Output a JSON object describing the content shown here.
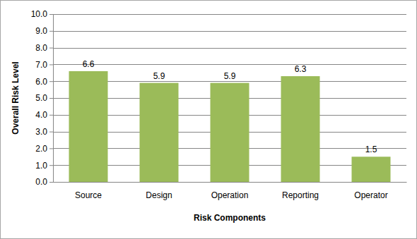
{
  "chart_data": {
    "type": "bar",
    "x_label": "Risk Components",
    "y_label": "Overall Risk Level",
    "categories": [
      "Source",
      "Design",
      "Operation",
      "Reporting",
      "Operator"
    ],
    "values": [
      6.6,
      5.9,
      5.9,
      6.3,
      1.5
    ],
    "color": "#9bbb59",
    "ylim": [
      0,
      10
    ],
    "yticks": [
      {
        "value": 0,
        "label": "0.0"
      },
      {
        "value": 1,
        "label": "1.0"
      },
      {
        "value": 2,
        "label": "2.0"
      },
      {
        "value": 3,
        "label": "3.0"
      },
      {
        "value": 4,
        "label": "4.0"
      },
      {
        "value": 5,
        "label": "5.0"
      },
      {
        "value": 6,
        "label": "6.0"
      },
      {
        "value": 7,
        "label": "7.0"
      },
      {
        "value": 8,
        "label": "8.0"
      },
      {
        "value": 9,
        "label": "9.0"
      },
      {
        "value": 10,
        "label": "10.0"
      }
    ],
    "grid": true,
    "data_labels": true
  }
}
